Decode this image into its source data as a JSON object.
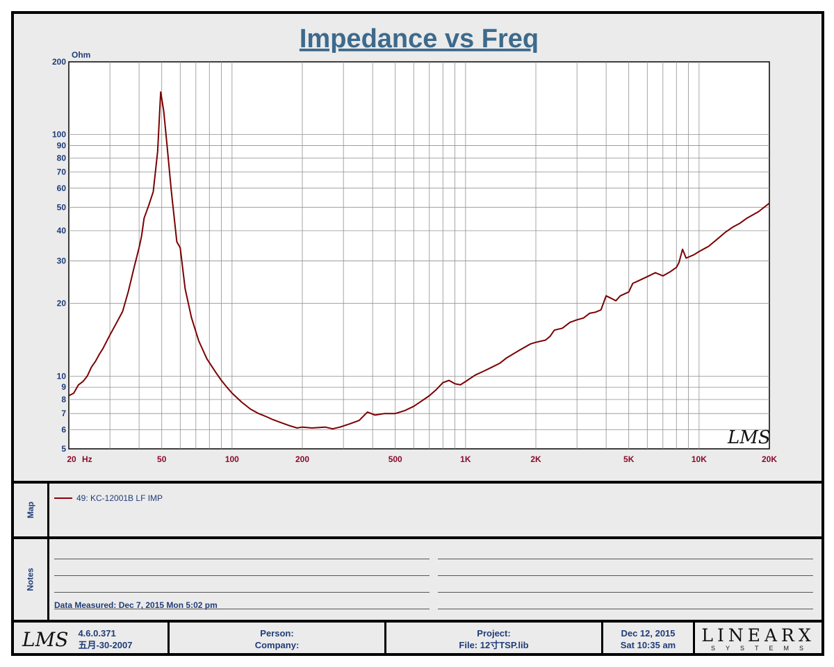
{
  "window": {
    "title": "Impedance vs Freq"
  },
  "chart_data": {
    "type": "line",
    "title": "Impedance vs Freq",
    "ylabel": "Ohm",
    "xlabel": "Hz",
    "xscale": "log",
    "yscale": "log",
    "xlim": [
      20,
      20000
    ],
    "ylim": [
      5,
      200
    ],
    "grid": true,
    "x_tick_labels": [
      {
        "value": 20,
        "label": "20"
      },
      {
        "value": 50,
        "label": "50"
      },
      {
        "value": 100,
        "label": "100"
      },
      {
        "value": 200,
        "label": "200"
      },
      {
        "value": 500,
        "label": "500"
      },
      {
        "value": 1000,
        "label": "1K"
      },
      {
        "value": 2000,
        "label": "2K"
      },
      {
        "value": 5000,
        "label": "5K"
      },
      {
        "value": 10000,
        "label": "10K"
      },
      {
        "value": 20000,
        "label": "20K"
      }
    ],
    "y_tick_labels": [
      {
        "value": 5,
        "label": "5"
      },
      {
        "value": 6,
        "label": "6"
      },
      {
        "value": 7,
        "label": "7"
      },
      {
        "value": 8,
        "label": "8"
      },
      {
        "value": 9,
        "label": "9"
      },
      {
        "value": 10,
        "label": "10"
      },
      {
        "value": 20,
        "label": "20"
      },
      {
        "value": 30,
        "label": "30"
      },
      {
        "value": 40,
        "label": "40"
      },
      {
        "value": 50,
        "label": "50"
      },
      {
        "value": 60,
        "label": "60"
      },
      {
        "value": 70,
        "label": "70"
      },
      {
        "value": 80,
        "label": "80"
      },
      {
        "value": 90,
        "label": "90"
      },
      {
        "value": 100,
        "label": "100"
      },
      {
        "value": 200,
        "label": "200"
      }
    ],
    "series": [
      {
        "name": "49: KC-12001B  LF IMP",
        "color": "#7a0000",
        "points": [
          [
            20,
            8.3
          ],
          [
            21,
            8.5
          ],
          [
            22,
            9.2
          ],
          [
            23,
            9.5
          ],
          [
            24,
            10.0
          ],
          [
            25,
            10.9
          ],
          [
            26,
            11.5
          ],
          [
            27,
            12.3
          ],
          [
            28,
            13.0
          ],
          [
            30,
            14.8
          ],
          [
            32,
            16.6
          ],
          [
            34,
            18.5
          ],
          [
            36,
            22.5
          ],
          [
            38,
            28.0
          ],
          [
            40,
            34.0
          ],
          [
            41,
            38.0
          ],
          [
            42,
            45.0
          ],
          [
            44,
            51.0
          ],
          [
            46,
            58.0
          ],
          [
            48,
            85.0
          ],
          [
            49.5,
            150.0
          ],
          [
            51,
            125.0
          ],
          [
            53,
            85.0
          ],
          [
            55,
            58.0
          ],
          [
            58,
            36.0
          ],
          [
            60,
            34.0
          ],
          [
            63,
            23.0
          ],
          [
            67,
            17.5
          ],
          [
            72,
            14.0
          ],
          [
            78,
            11.8
          ],
          [
            85,
            10.4
          ],
          [
            90,
            9.6
          ],
          [
            95,
            9.0
          ],
          [
            100,
            8.5
          ],
          [
            110,
            7.8
          ],
          [
            120,
            7.3
          ],
          [
            130,
            7.0
          ],
          [
            140,
            6.8
          ],
          [
            150,
            6.6
          ],
          [
            160,
            6.45
          ],
          [
            175,
            6.25
          ],
          [
            190,
            6.1
          ],
          [
            200,
            6.15
          ],
          [
            220,
            6.1
          ],
          [
            250,
            6.15
          ],
          [
            270,
            6.05
          ],
          [
            290,
            6.15
          ],
          [
            320,
            6.35
          ],
          [
            350,
            6.55
          ],
          [
            380,
            7.1
          ],
          [
            410,
            6.9
          ],
          [
            450,
            7.0
          ],
          [
            500,
            7.0
          ],
          [
            550,
            7.2
          ],
          [
            600,
            7.5
          ],
          [
            650,
            7.9
          ],
          [
            700,
            8.3
          ],
          [
            750,
            8.8
          ],
          [
            800,
            9.4
          ],
          [
            850,
            9.6
          ],
          [
            900,
            9.3
          ],
          [
            950,
            9.2
          ],
          [
            1000,
            9.5
          ],
          [
            1100,
            10.1
          ],
          [
            1200,
            10.5
          ],
          [
            1300,
            10.9
          ],
          [
            1400,
            11.3
          ],
          [
            1500,
            11.9
          ],
          [
            1700,
            12.8
          ],
          [
            1900,
            13.6
          ],
          [
            2000,
            13.8
          ],
          [
            2200,
            14.1
          ],
          [
            2300,
            14.6
          ],
          [
            2400,
            15.5
          ],
          [
            2600,
            15.8
          ],
          [
            2800,
            16.7
          ],
          [
            3000,
            17.1
          ],
          [
            3200,
            17.4
          ],
          [
            3400,
            18.2
          ],
          [
            3600,
            18.4
          ],
          [
            3800,
            18.8
          ],
          [
            4000,
            21.5
          ],
          [
            4200,
            21.0
          ],
          [
            4400,
            20.5
          ],
          [
            4600,
            21.5
          ],
          [
            5000,
            22.3
          ],
          [
            5200,
            24.2
          ],
          [
            5500,
            24.8
          ],
          [
            6000,
            25.8
          ],
          [
            6500,
            26.8
          ],
          [
            7000,
            26.0
          ],
          [
            7500,
            27.0
          ],
          [
            8000,
            28.2
          ],
          [
            8200,
            29.5
          ],
          [
            8500,
            33.5
          ],
          [
            8800,
            30.8
          ],
          [
            9500,
            31.8
          ],
          [
            10000,
            32.8
          ],
          [
            11000,
            34.5
          ],
          [
            12000,
            37.0
          ],
          [
            13000,
            39.5
          ],
          [
            14000,
            41.5
          ],
          [
            15000,
            43.0
          ],
          [
            16000,
            45.0
          ],
          [
            18000,
            48.0
          ],
          [
            20000,
            52.0
          ]
        ]
      }
    ]
  },
  "map_panel": {
    "label": "Map",
    "legend_entry": "49: KC-12001B  LF IMP"
  },
  "notes_panel": {
    "label": "Notes",
    "data_measured": "Data Measured: Dec  7, 2015  Mon  5:02 pm"
  },
  "footer": {
    "logo": "LMS",
    "version": "4.6.0.371",
    "build_date": "五月-30-2007",
    "person_label": "Person:",
    "company_label": "Company:",
    "project_label": "Project:",
    "file_label": "File: 12寸TSP.lib",
    "date": "Dec 12, 2015",
    "time": "Sat 10:35 am",
    "brand_main": "LINEARX",
    "brand_sub": "SYSTEMS"
  },
  "chart_watermark": "LMS",
  "colors": {
    "title_blue": "#3d6a8c",
    "label_blue": "#1f3c78",
    "label_red": "#8b0a2c",
    "curve": "#7a0000"
  }
}
